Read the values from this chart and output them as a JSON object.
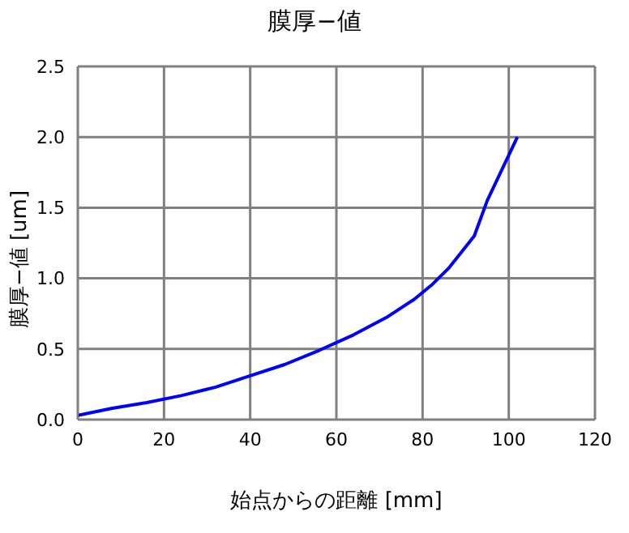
{
  "chart_data": {
    "type": "line",
    "title": "膜厚−値",
    "xlabel": "始点からの距離 [mm]",
    "ylabel": "膜厚−値 [um]",
    "x": [
      0,
      8,
      16,
      24,
      32,
      40,
      48,
      56,
      64,
      72,
      78,
      82,
      86,
      92,
      95,
      102
    ],
    "series": [
      {
        "color": "#0000ff",
        "values": [
          0.03,
          0.08,
          0.12,
          0.17,
          0.23,
          0.31,
          0.39,
          0.49,
          0.6,
          0.73,
          0.85,
          0.95,
          1.07,
          1.3,
          1.55,
          2.0
        ]
      }
    ],
    "xlim": [
      0,
      120
    ],
    "xticks": [
      0,
      20,
      40,
      60,
      80,
      100,
      120
    ],
    "ylim": [
      0,
      2.5
    ],
    "yticks": [
      {
        "value": 0,
        "label": "0.0"
      },
      0.5,
      {
        "value": 1,
        "label": "1.0"
      },
      1.5,
      {
        "value": 2,
        "label": "2.0"
      },
      2.5
    ],
    "grid": true,
    "marker": "none",
    "line_style": "solid"
  }
}
